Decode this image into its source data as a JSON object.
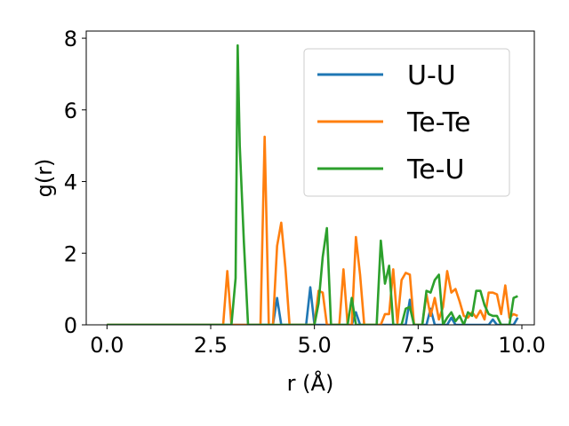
{
  "chart_data": {
    "type": "line",
    "title": "",
    "xlabel": "r (Å)",
    "ylabel": "g(r)",
    "xlim": [
      -0.5,
      10.3
    ],
    "ylim": [
      0,
      8.2
    ],
    "xticks": [
      0.0,
      2.5,
      5.0,
      7.5,
      10.0
    ],
    "xtick_labels": [
      "0.0",
      "2.5",
      "5.0",
      "7.5",
      "10.0"
    ],
    "yticks": [
      0,
      2,
      4,
      6,
      8
    ],
    "ytick_labels": [
      "0",
      "2",
      "4",
      "6",
      "8"
    ],
    "grid": false,
    "legend_position": "top-right",
    "series": [
      {
        "name": "U-U",
        "color": "#1f77b4",
        "points": [
          [
            0.0,
            0.0
          ],
          [
            4.0,
            0.0
          ],
          [
            4.1,
            0.75
          ],
          [
            4.2,
            0.0
          ],
          [
            4.8,
            0.0
          ],
          [
            4.9,
            1.05
          ],
          [
            5.0,
            0.0
          ],
          [
            5.9,
            0.0
          ],
          [
            6.0,
            0.35
          ],
          [
            6.1,
            0.0
          ],
          [
            7.2,
            0.0
          ],
          [
            7.3,
            0.7
          ],
          [
            7.4,
            0.0
          ],
          [
            7.7,
            0.0
          ],
          [
            7.8,
            0.45
          ],
          [
            7.9,
            0.0
          ],
          [
            8.2,
            0.0
          ],
          [
            8.3,
            0.2
          ],
          [
            8.4,
            0.0
          ],
          [
            9.2,
            0.0
          ],
          [
            9.3,
            0.15
          ],
          [
            9.4,
            0.0
          ],
          [
            9.8,
            0.0
          ],
          [
            9.9,
            0.2
          ]
        ]
      },
      {
        "name": "Te-Te",
        "color": "#ff7f0e",
        "points": [
          [
            0.0,
            0.0
          ],
          [
            2.8,
            0.0
          ],
          [
            2.9,
            1.5
          ],
          [
            3.0,
            0.0
          ],
          [
            3.7,
            0.0
          ],
          [
            3.8,
            5.25
          ],
          [
            3.9,
            0.0
          ],
          [
            4.0,
            0.0
          ],
          [
            4.1,
            2.2
          ],
          [
            4.2,
            2.85
          ],
          [
            4.3,
            1.6
          ],
          [
            4.4,
            0.0
          ],
          [
            5.0,
            0.0
          ],
          [
            5.1,
            0.95
          ],
          [
            5.2,
            0.9
          ],
          [
            5.3,
            0.0
          ],
          [
            5.6,
            0.0
          ],
          [
            5.7,
            1.55
          ],
          [
            5.8,
            0.0
          ],
          [
            5.9,
            0.0
          ],
          [
            6.0,
            2.45
          ],
          [
            6.1,
            1.4
          ],
          [
            6.2,
            0.0
          ],
          [
            6.6,
            0.0
          ],
          [
            6.7,
            0.3
          ],
          [
            6.8,
            0.3
          ],
          [
            6.9,
            1.55
          ],
          [
            7.0,
            0.05
          ],
          [
            7.1,
            1.25
          ],
          [
            7.2,
            1.45
          ],
          [
            7.3,
            1.4
          ],
          [
            7.4,
            0.0
          ],
          [
            7.6,
            0.0
          ],
          [
            7.7,
            0.85
          ],
          [
            7.8,
            0.25
          ],
          [
            7.9,
            0.75
          ],
          [
            8.0,
            0.15
          ],
          [
            8.1,
            0.5
          ],
          [
            8.2,
            1.5
          ],
          [
            8.3,
            0.9
          ],
          [
            8.4,
            1.0
          ],
          [
            8.5,
            0.65
          ],
          [
            8.6,
            0.25
          ],
          [
            8.7,
            0.2
          ],
          [
            8.8,
            0.35
          ],
          [
            8.9,
            0.2
          ],
          [
            9.0,
            0.4
          ],
          [
            9.1,
            0.15
          ],
          [
            9.2,
            0.9
          ],
          [
            9.3,
            0.9
          ],
          [
            9.4,
            0.85
          ],
          [
            9.5,
            0.3
          ],
          [
            9.6,
            1.1
          ],
          [
            9.7,
            0.2
          ],
          [
            9.8,
            0.3
          ],
          [
            9.9,
            0.25
          ]
        ]
      },
      {
        "name": "Te-U",
        "color": "#2ca02c",
        "points": [
          [
            0.0,
            0.0
          ],
          [
            3.0,
            0.0
          ],
          [
            3.1,
            1.3
          ],
          [
            3.15,
            7.8
          ],
          [
            3.2,
            5.0
          ],
          [
            3.3,
            2.3
          ],
          [
            3.4,
            0.0
          ],
          [
            5.0,
            0.0
          ],
          [
            5.1,
            0.6
          ],
          [
            5.2,
            1.9
          ],
          [
            5.3,
            2.7
          ],
          [
            5.4,
            0.0
          ],
          [
            5.8,
            0.0
          ],
          [
            5.9,
            0.75
          ],
          [
            6.0,
            0.0
          ],
          [
            6.5,
            0.0
          ],
          [
            6.6,
            2.35
          ],
          [
            6.7,
            1.15
          ],
          [
            6.8,
            1.65
          ],
          [
            6.9,
            0.0
          ],
          [
            7.1,
            0.0
          ],
          [
            7.2,
            0.45
          ],
          [
            7.3,
            0.5
          ],
          [
            7.4,
            0.0
          ],
          [
            7.6,
            0.0
          ],
          [
            7.7,
            0.95
          ],
          [
            7.8,
            0.9
          ],
          [
            7.9,
            1.25
          ],
          [
            8.0,
            1.4
          ],
          [
            8.1,
            0.0
          ],
          [
            8.2,
            0.2
          ],
          [
            8.3,
            0.35
          ],
          [
            8.4,
            0.1
          ],
          [
            8.5,
            0.25
          ],
          [
            8.6,
            0.0
          ],
          [
            8.7,
            0.35
          ],
          [
            8.8,
            0.25
          ],
          [
            8.9,
            0.95
          ],
          [
            9.0,
            0.95
          ],
          [
            9.1,
            0.55
          ],
          [
            9.2,
            0.3
          ],
          [
            9.3,
            0.25
          ],
          [
            9.4,
            0.25
          ],
          [
            9.5,
            0.0
          ],
          [
            9.6,
            0.0
          ],
          [
            9.7,
            0.0
          ],
          [
            9.8,
            0.75
          ],
          [
            9.9,
            0.8
          ]
        ]
      }
    ]
  }
}
